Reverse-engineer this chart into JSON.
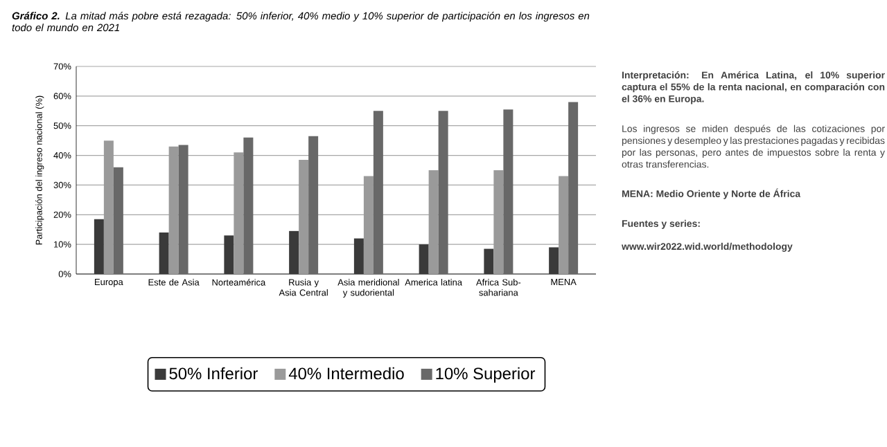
{
  "chart_data": {
    "type": "bar",
    "title": "**Gráfico 2.** La mitad más pobre está rezagada: 50% inferior, 40% medio y 10% superior de participación en los ingresos en todo el mundo en 2021",
    "ylabel": "Participación del ingreso nacional  (%)",
    "categories": [
      "Europa",
      "Este de Asia",
      "Norteamérica",
      "Rusia y Asia Central",
      "Asia meridional y sudoriental",
      "America latina",
      "Africa Sub-sahariana",
      "MENA"
    ],
    "series": [
      {
        "name": "50% Inferior",
        "color": "#3a3a3a",
        "values": [
          18.5,
          14,
          13,
          14.5,
          12,
          10,
          8.5,
          9
        ]
      },
      {
        "name": "40% Intermedio",
        "color": "#9a9a9a",
        "values": [
          45,
          43,
          41,
          38.5,
          33,
          35,
          35,
          33
        ]
      },
      {
        "name": "10% Superior",
        "color": "#686868",
        "values": [
          36,
          43.5,
          46,
          46.5,
          55,
          55,
          55.5,
          58
        ]
      }
    ],
    "ylim": [
      0,
      70
    ],
    "yticks": [
      {
        "value": 0,
        "label": "0%"
      },
      {
        "value": 10,
        "label": "10%"
      },
      {
        "value": 20,
        "label": "20%"
      },
      {
        "value": 30,
        "label": "30%"
      },
      {
        "value": 40,
        "label": "40%"
      },
      {
        "value": 50,
        "label": "50%"
      },
      {
        "value": 60,
        "label": "60%"
      },
      {
        "value": 70,
        "label": "70%"
      }
    ],
    "grid": "y",
    "legend": "bottom",
    "annotations": [
      "**Interpretación: En América Latina, el 10% superior captura el 55% de la renta nacional, en comparación con el 36% en Europa.**",
      "Los ingresos se miden después de las cotizaciones por pensiones y desempleo y las prestaciones pagadas y recibidas por las personas, pero antes de impuestos sobre la renta y otras transferencias.",
      "**MENA: Medio Oriente y Norte de África**",
      "**Fuentes y series:**",
      "**www.wir2022.wid.world/methodology**"
    ]
  }
}
